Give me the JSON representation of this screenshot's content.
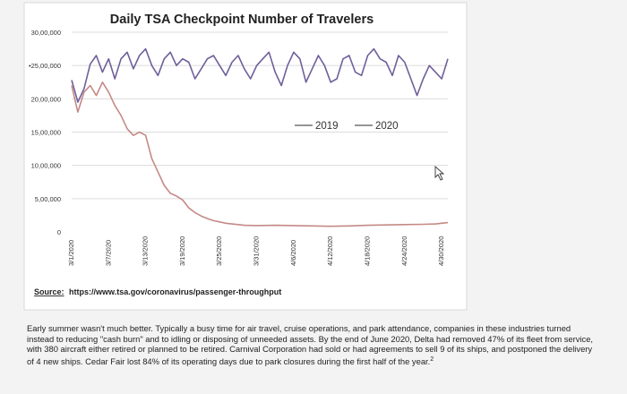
{
  "chart_data": {
    "type": "line",
    "title": "Daily TSA Checkpoint Number of Travelers",
    "y_ticks": [
      {
        "value": 3000000,
        "label": "30,00,000"
      },
      {
        "value": 2500000,
        "label": "•25,00,000"
      },
      {
        "value": 2000000,
        "label": "20,00,000"
      },
      {
        "value": 1500000,
        "label": "15,00,000"
      },
      {
        "value": 1000000,
        "label": "10,00,000"
      },
      {
        "value": 500000,
        "label": "5,00,000"
      },
      {
        "value": 0,
        "label": "0"
      }
    ],
    "ylim": [
      0,
      3000000
    ],
    "x_ticks": [
      {
        "day": 0,
        "label": "3/1/2020"
      },
      {
        "day": 6,
        "label": "3/7/2020"
      },
      {
        "day": 12,
        "label": "3/13/2020"
      },
      {
        "day": 18,
        "label": "3/19/2020"
      },
      {
        "day": 24,
        "label": "3/25/2020"
      },
      {
        "day": 30,
        "label": "3/31/2020"
      },
      {
        "day": 36,
        "label": "4/6/2020"
      },
      {
        "day": 42,
        "label": "4/12/2020"
      },
      {
        "day": 48,
        "label": "4/18/2020"
      },
      {
        "day": 54,
        "label": "4/24/2020"
      },
      {
        "day": 60,
        "label": "4/30/2020"
      }
    ],
    "xlim": [
      0,
      61
    ],
    "series": [
      {
        "name": "2019",
        "color": "#6f5f9a",
        "points": [
          [
            0,
            2280000
          ],
          [
            1,
            1950000
          ],
          [
            2,
            2150000
          ],
          [
            3,
            2520000
          ],
          [
            4,
            2650000
          ],
          [
            5,
            2400000
          ],
          [
            6,
            2600000
          ],
          [
            7,
            2300000
          ],
          [
            8,
            2600000
          ],
          [
            9,
            2700000
          ],
          [
            10,
            2450000
          ],
          [
            11,
            2650000
          ],
          [
            12,
            2750000
          ],
          [
            13,
            2500000
          ],
          [
            14,
            2350000
          ],
          [
            15,
            2600000
          ],
          [
            16,
            2700000
          ],
          [
            17,
            2500000
          ],
          [
            18,
            2600000
          ],
          [
            19,
            2550000
          ],
          [
            20,
            2300000
          ],
          [
            21,
            2450000
          ],
          [
            22,
            2600000
          ],
          [
            23,
            2650000
          ],
          [
            24,
            2500000
          ],
          [
            25,
            2350000
          ],
          [
            26,
            2550000
          ],
          [
            27,
            2650000
          ],
          [
            28,
            2450000
          ],
          [
            29,
            2300000
          ],
          [
            30,
            2500000
          ],
          [
            31,
            2600000
          ],
          [
            32,
            2700000
          ],
          [
            33,
            2400000
          ],
          [
            34,
            2200000
          ],
          [
            35,
            2500000
          ],
          [
            36,
            2700000
          ],
          [
            37,
            2600000
          ],
          [
            38,
            2250000
          ],
          [
            39,
            2450000
          ],
          [
            40,
            2650000
          ],
          [
            41,
            2500000
          ],
          [
            42,
            2250000
          ],
          [
            43,
            2300000
          ],
          [
            44,
            2600000
          ],
          [
            45,
            2650000
          ],
          [
            46,
            2400000
          ],
          [
            47,
            2350000
          ],
          [
            48,
            2650000
          ],
          [
            49,
            2750000
          ],
          [
            50,
            2600000
          ],
          [
            51,
            2550000
          ],
          [
            52,
            2350000
          ],
          [
            53,
            2650000
          ],
          [
            54,
            2550000
          ],
          [
            55,
            2300000
          ],
          [
            56,
            2050000
          ],
          [
            57,
            2300000
          ],
          [
            58,
            2500000
          ],
          [
            59,
            2400000
          ],
          [
            60,
            2300000
          ],
          [
            61,
            2600000
          ]
        ]
      },
      {
        "name": "2020",
        "color": "#c48a86",
        "points": [
          [
            0,
            2200000
          ],
          [
            1,
            1800000
          ],
          [
            2,
            2100000
          ],
          [
            3,
            2200000
          ],
          [
            4,
            2050000
          ],
          [
            5,
            2250000
          ],
          [
            6,
            2100000
          ],
          [
            7,
            1900000
          ],
          [
            8,
            1750000
          ],
          [
            9,
            1550000
          ],
          [
            10,
            1450000
          ],
          [
            11,
            1500000
          ],
          [
            12,
            1450000
          ],
          [
            13,
            1100000
          ],
          [
            14,
            900000
          ],
          [
            15,
            700000
          ],
          [
            16,
            580000
          ],
          [
            17,
            540000
          ],
          [
            18,
            480000
          ],
          [
            19,
            360000
          ],
          [
            20,
            290000
          ],
          [
            21,
            240000
          ],
          [
            22,
            200000
          ],
          [
            23,
            170000
          ],
          [
            24,
            150000
          ],
          [
            25,
            130000
          ],
          [
            26,
            120000
          ],
          [
            27,
            110000
          ],
          [
            28,
            100000
          ],
          [
            30,
            95000
          ],
          [
            33,
            100000
          ],
          [
            36,
            95000
          ],
          [
            39,
            90000
          ],
          [
            42,
            85000
          ],
          [
            45,
            90000
          ],
          [
            48,
            100000
          ],
          [
            51,
            105000
          ],
          [
            54,
            110000
          ],
          [
            57,
            115000
          ],
          [
            59,
            120000
          ],
          [
            61,
            140000
          ]
        ]
      }
    ],
    "legend_position": "right",
    "source_label": "Source:",
    "source_url": "https://www.tsa.gov/coronavirus/passenger-throughput"
  },
  "paragraph": {
    "text": "Early summer wasn't much better. Typically a busy time for air travel, cruise operations, and park attendance, companies in these industries turned instead to reducing \"cash burn\" and to idling or disposing of unneeded assets. By the end of June 2020, Delta had removed 47% of its fleet from service, with 380 aircraft either retired or planned to be retired. Carnival Corporation had sold or had agreements to sell 9 of its ships, and postponed the delivery of 4 new ships. Cedar Fair lost 84% of its operating days due to park closures during the first half of the year.",
    "footnote": "2"
  }
}
